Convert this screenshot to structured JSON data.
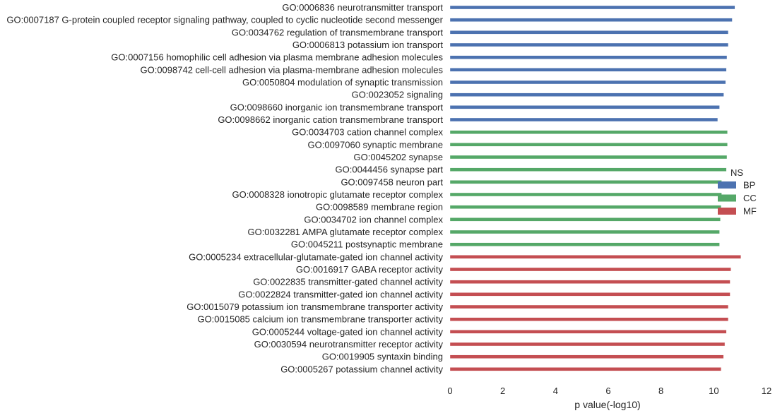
{
  "chart_data": {
    "type": "bar",
    "orientation": "horizontal",
    "xlabel": "p value(-log10)",
    "ylabel": "",
    "xlim": [
      0,
      12
    ],
    "xticks": [
      "0",
      "2",
      "4",
      "6",
      "8",
      "10",
      "12"
    ],
    "grid": false,
    "legend": {
      "title": "NS",
      "placement": "right",
      "entries": [
        {
          "label": "BP",
          "color": "#4c72b0"
        },
        {
          "label": "CC",
          "color": "#55a868"
        },
        {
          "label": "MF",
          "color": "#c44e52"
        }
      ]
    },
    "categories": [
      {
        "label": "GO:0006836 neurotransmitter transport",
        "value": 10.8,
        "group": "BP"
      },
      {
        "label": "GO:0007187 G-protein coupled receptor signaling pathway, coupled to cyclic nucleotide second messenger",
        "value": 10.7,
        "group": "BP"
      },
      {
        "label": "GO:0034762 regulation of transmembrane transport",
        "value": 10.55,
        "group": "BP"
      },
      {
        "label": "GO:0006813 potassium ion transport",
        "value": 10.55,
        "group": "BP"
      },
      {
        "label": "GO:0007156 homophilic cell adhesion via plasma membrane adhesion molecules",
        "value": 10.5,
        "group": "BP"
      },
      {
        "label": "GO:0098742 cell-cell adhesion via plasma-membrane adhesion molecules",
        "value": 10.48,
        "group": "BP"
      },
      {
        "label": "GO:0050804 modulation of synaptic transmission",
        "value": 10.45,
        "group": "BP"
      },
      {
        "label": "GO:0023052 signaling",
        "value": 10.38,
        "group": "BP"
      },
      {
        "label": "GO:0098660 inorganic ion transmembrane transport",
        "value": 10.22,
        "group": "BP"
      },
      {
        "label": "GO:0098662 inorganic cation transmembrane transport",
        "value": 10.15,
        "group": "BP"
      },
      {
        "label": "GO:0034703 cation channel complex",
        "value": 10.52,
        "group": "CC"
      },
      {
        "label": "GO:0097060 synaptic membrane",
        "value": 10.52,
        "group": "CC"
      },
      {
        "label": "GO:0045202 synapse",
        "value": 10.5,
        "group": "CC"
      },
      {
        "label": "GO:0044456 synapse part",
        "value": 10.48,
        "group": "CC"
      },
      {
        "label": "GO:0097458 neuron part",
        "value": 10.3,
        "group": "CC"
      },
      {
        "label": "GO:0008328 ionotropic glutamate receptor complex",
        "value": 10.3,
        "group": "CC"
      },
      {
        "label": "GO:0098589 membrane region",
        "value": 10.28,
        "group": "CC"
      },
      {
        "label": "GO:0034702 ion channel complex",
        "value": 10.25,
        "group": "CC"
      },
      {
        "label": "GO:0032281 AMPA glutamate receptor complex",
        "value": 10.22,
        "group": "CC"
      },
      {
        "label": "GO:0045211 postsynaptic membrane",
        "value": 10.22,
        "group": "CC"
      },
      {
        "label": "GO:0005234 extracellular-glutamate-gated ion channel activity",
        "value": 11.03,
        "group": "MF"
      },
      {
        "label": "GO:0016917 GABA receptor activity",
        "value": 10.65,
        "group": "MF"
      },
      {
        "label": "GO:0022835 transmitter-gated channel activity",
        "value": 10.62,
        "group": "MF"
      },
      {
        "label": "GO:0022824 transmitter-gated ion channel activity",
        "value": 10.62,
        "group": "MF"
      },
      {
        "label": "GO:0015079 potassium ion transmembrane transporter activity",
        "value": 10.55,
        "group": "MF"
      },
      {
        "label": "GO:0015085 calcium ion transmembrane transporter activity",
        "value": 10.55,
        "group": "MF"
      },
      {
        "label": "GO:0005244 voltage-gated ion channel activity",
        "value": 10.48,
        "group": "MF"
      },
      {
        "label": "GO:0030594 neurotransmitter receptor activity",
        "value": 10.42,
        "group": "MF"
      },
      {
        "label": "GO:0019905 syntaxin binding",
        "value": 10.37,
        "group": "MF"
      },
      {
        "label": "GO:0005267 potassium channel activity",
        "value": 10.28,
        "group": "MF"
      }
    ]
  }
}
